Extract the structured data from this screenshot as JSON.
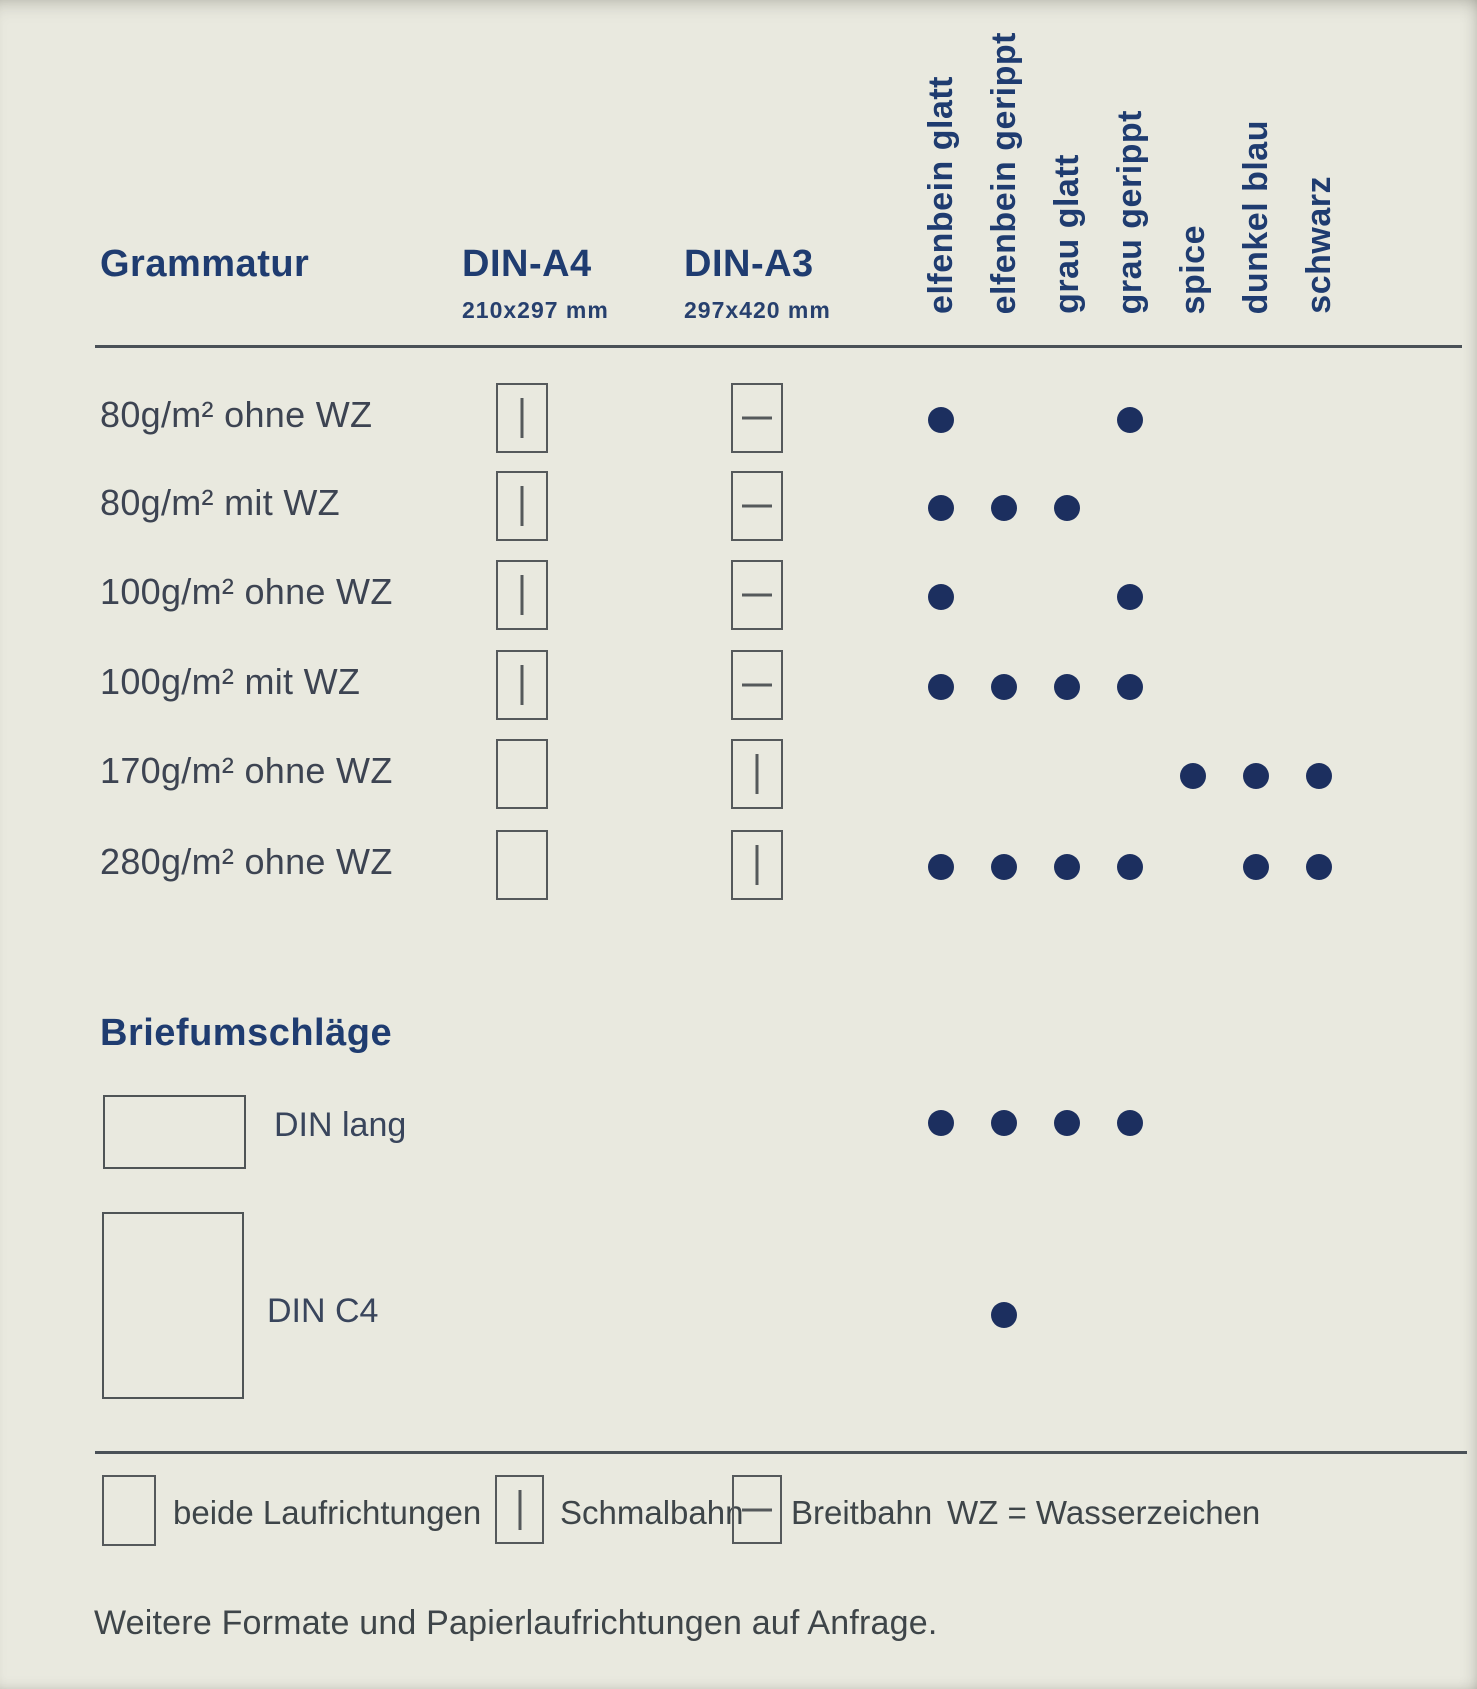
{
  "palette": {
    "background": "#e9e9df",
    "navy_heading": "#1f3c70",
    "dot_navy": "#1c2f5f",
    "body_text": "#3d4452",
    "icon_outline": "#55595b"
  },
  "table": {
    "col_group_label": "Grammatur",
    "formats": [
      {
        "name": "DIN-A4",
        "size": "210x297 mm"
      },
      {
        "name": "DIN-A3",
        "size": "297x420 mm"
      }
    ],
    "colors": [
      "elfenbein glatt",
      "elfenbein gerippt",
      "grau glatt",
      "grau gerippt",
      "spice",
      "dunkel blau",
      "schwarz"
    ],
    "icon_meanings": {
      "beide": "beide Laufrichtungen",
      "schmalbahn": "Schmalbahn",
      "breitbahn": "Breitbahn"
    },
    "rows": [
      {
        "label": "80g/m² ohne WZ",
        "a4": "schmalbahn",
        "a3": "breitbahn",
        "dots": [
          1,
          0,
          0,
          1,
          0,
          0,
          0
        ]
      },
      {
        "label": "80g/m² mit WZ",
        "a4": "schmalbahn",
        "a3": "breitbahn",
        "dots": [
          1,
          1,
          1,
          0,
          0,
          0,
          0
        ]
      },
      {
        "label": "100g/m² ohne WZ",
        "a4": "schmalbahn",
        "a3": "breitbahn",
        "dots": [
          1,
          0,
          0,
          1,
          0,
          0,
          0
        ]
      },
      {
        "label": "100g/m² mit WZ",
        "a4": "schmalbahn",
        "a3": "breitbahn",
        "dots": [
          1,
          1,
          1,
          1,
          0,
          0,
          0
        ]
      },
      {
        "label": "170g/m² ohne WZ",
        "a4": "beide",
        "a3": "schmalbahn",
        "dots": [
          0,
          0,
          0,
          0,
          1,
          1,
          1
        ]
      },
      {
        "label": "280g/m² ohne WZ",
        "a4": "beide",
        "a3": "schmalbahn",
        "dots": [
          1,
          1,
          1,
          1,
          0,
          1,
          1
        ]
      }
    ]
  },
  "envelopes": {
    "heading": "Briefumschläge",
    "items": [
      {
        "label": "DIN lang",
        "dots": [
          1,
          1,
          1,
          1,
          0,
          0,
          0
        ]
      },
      {
        "label": "DIN C4",
        "dots": [
          0,
          1,
          0,
          0,
          0,
          0,
          0
        ]
      }
    ]
  },
  "legend": {
    "items": [
      {
        "icon": "beide",
        "label": "beide Laufrichtungen"
      },
      {
        "icon": "schmalbahn",
        "label": "Schmalbahn"
      },
      {
        "icon": "breitbahn",
        "label": "Breitbahn"
      }
    ],
    "note": "WZ = Wasserzeichen"
  },
  "footer": "Weitere Formate und Papierlaufrichtungen auf Anfrage."
}
